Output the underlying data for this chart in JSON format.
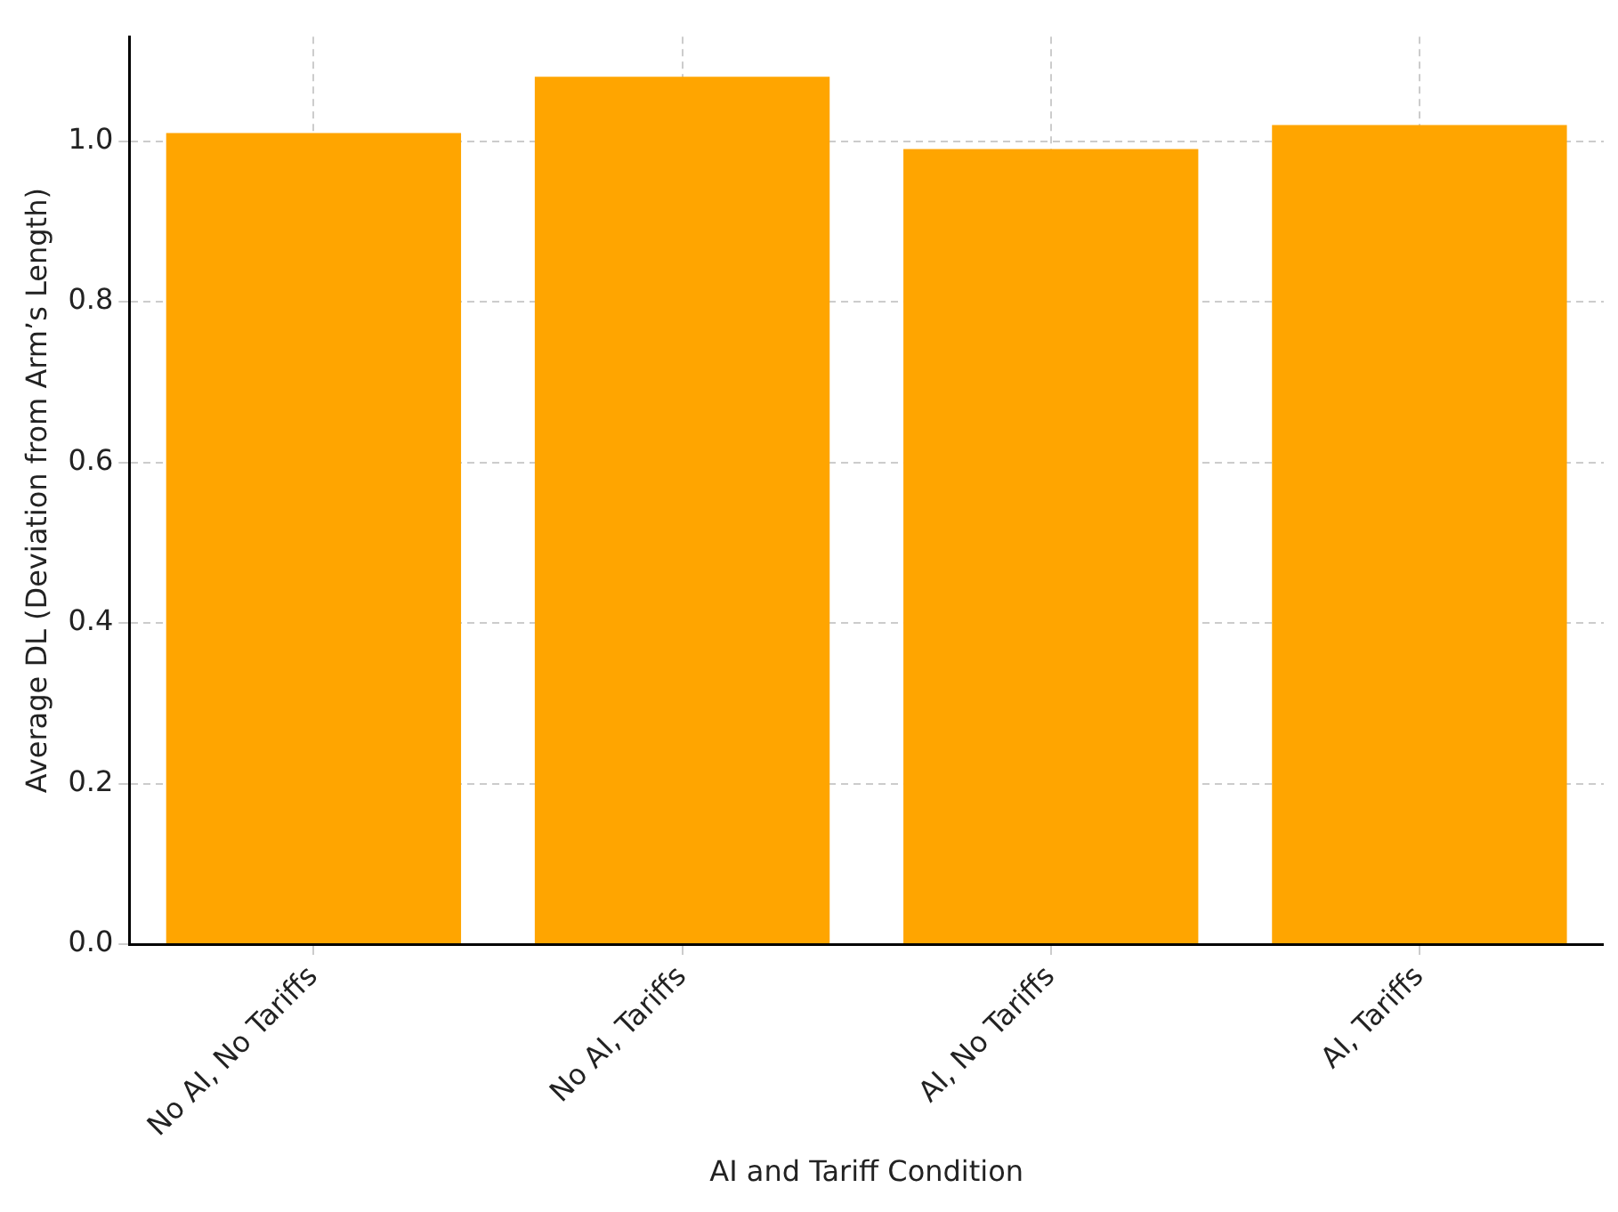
{
  "chart_data": {
    "type": "bar",
    "xlabel": "AI and Tariff Condition",
    "ylabel": "Average DL (Deviation from Arm’s Length)",
    "categories": [
      "No AI, No Tariffs",
      "No AI, Tariffs",
      "AI, No Tariffs",
      "AI, Tariffs"
    ],
    "values": [
      1.01,
      1.08,
      0.99,
      1.02
    ],
    "color": "#ffa500",
    "ylim": [
      0,
      1.13
    ],
    "yticks": [
      {
        "value": 0,
        "label": "0.0"
      },
      0.2,
      0.4,
      0.6,
      0.8,
      {
        "value": 1,
        "label": "1.0"
      }
    ],
    "grid": true
  }
}
